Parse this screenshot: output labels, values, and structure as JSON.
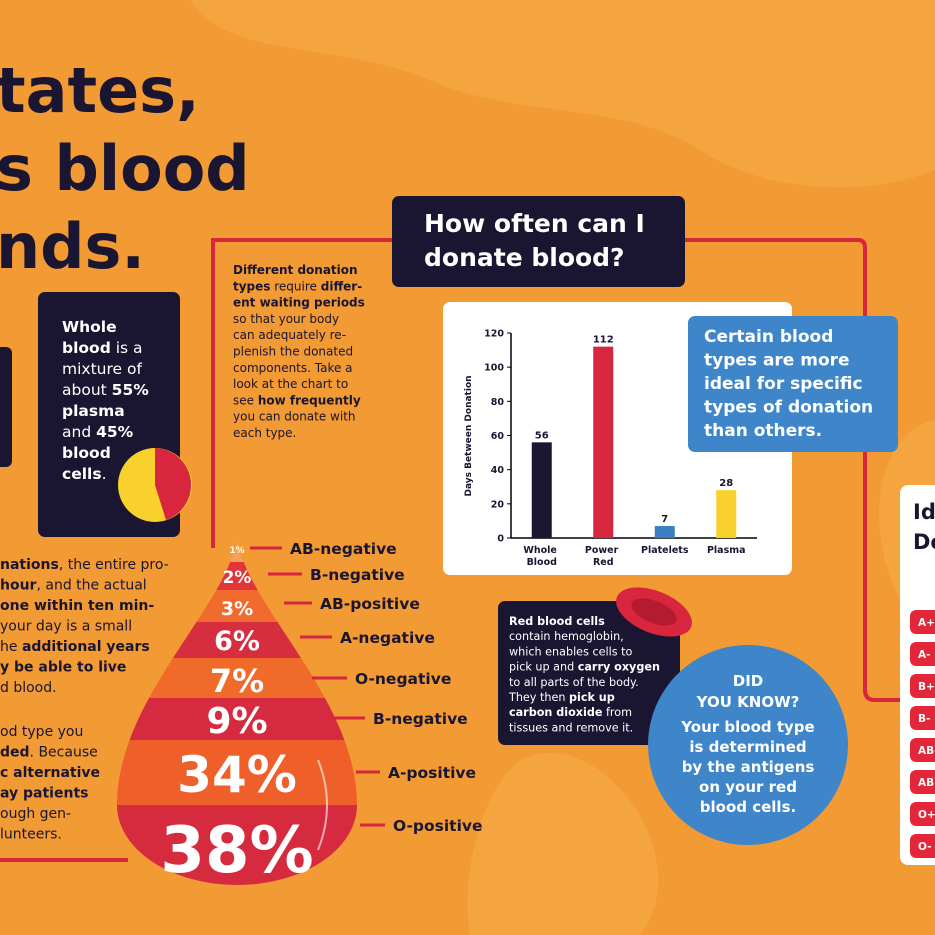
{
  "headline": [
    "tates,",
    "s blood",
    "nds."
  ],
  "left_text_1": [
    [
      {
        "text": "nations",
        "bold": true
      },
      {
        "text": ", the entire pro-"
      }
    ],
    [
      {
        "text": "hour",
        "bold": true
      },
      {
        "text": ", and the actual"
      }
    ],
    [
      {
        "text": "one within ten min-",
        "bold": true
      }
    ],
    [
      {
        "text": "your day is a small"
      }
    ],
    [
      {
        "text": "he "
      },
      {
        "text": "additional years",
        "bold": true
      }
    ],
    [
      {
        "text": "y be able to live",
        "bold": true
      }
    ],
    [
      {
        "text": "d blood."
      }
    ]
  ],
  "left_text_2": [
    [
      {
        "text": "od type you"
      }
    ],
    [
      {
        "text": "ded",
        "bold": true
      },
      {
        "text": ". Because"
      }
    ],
    [
      {
        "text": "c alternative",
        "bold": true
      }
    ],
    [
      {
        "text": "ay patients",
        "bold": true
      }
    ],
    [
      {
        "text": "ough gen-"
      }
    ],
    [
      {
        "text": "lunteers."
      }
    ]
  ],
  "whole_blood": [
    [
      {
        "text": "Whole",
        "bold": true
      }
    ],
    [
      {
        "text": "blood",
        "bold": true
      },
      {
        "text": " is a"
      }
    ],
    [
      {
        "text": "mixture of"
      }
    ],
    [
      {
        "text": "about "
      },
      {
        "text": "55%",
        "bold": true
      }
    ],
    [
      {
        "text": "plasma",
        "bold": true
      }
    ],
    [
      {
        "text": "and "
      },
      {
        "text": "45%",
        "bold": true
      }
    ],
    [
      {
        "text": "blood",
        "bold": true
      }
    ],
    [
      {
        "text": "cells",
        "bold": true
      },
      {
        "text": "."
      }
    ]
  ],
  "donation_text": [
    [
      {
        "text": "Different donation",
        "bold": true
      }
    ],
    [
      {
        "text": "types",
        "bold": true
      },
      {
        "text": " require "
      },
      {
        "text": "differ-",
        "bold": true
      }
    ],
    [
      {
        "text": "ent waiting periods",
        "bold": true
      }
    ],
    [
      {
        "text": "so that your body"
      }
    ],
    [
      {
        "text": "can adequately re-"
      }
    ],
    [
      {
        "text": "plenish the donated"
      }
    ],
    [
      {
        "text": "components. Take a"
      }
    ],
    [
      {
        "text": "look at the chart to"
      }
    ],
    [
      {
        "text": "see "
      },
      {
        "text": "how frequently",
        "bold": true
      }
    ],
    [
      {
        "text": "you can donate with"
      }
    ],
    [
      {
        "text": "each type."
      }
    ]
  ],
  "header": [
    "How often can I",
    "donate blood?"
  ],
  "chart_data": {
    "type": "bar",
    "categories": [
      "Whole Blood",
      "Power Red",
      "Platelets",
      "Plasma"
    ],
    "values": [
      56,
      112,
      7,
      28
    ],
    "colors": [
      "#1b1733",
      "#d7263d",
      "#3a7fc1",
      "#f9d12d"
    ],
    "ylabel": "Days Between Donation",
    "ylim": [
      0,
      120
    ],
    "yticks": [
      0,
      20,
      40,
      60,
      80,
      100,
      120
    ]
  },
  "blue_box": [
    "Certain blood",
    "types are more",
    "ideal for specific",
    "types of donation",
    "than others."
  ],
  "ideal_panel": {
    "title": [
      "Id",
      "De"
    ],
    "types": [
      "A+",
      "A-",
      "B+",
      "B-",
      "AB-",
      "AB",
      "O+",
      "O-"
    ]
  },
  "red_cells": [
    [
      {
        "text": "Red blood cells",
        "bold": true
      }
    ],
    [
      {
        "text": "contain hemoglobin,"
      }
    ],
    [
      {
        "text": "which enables cells to"
      }
    ],
    [
      {
        "text": "pick up and "
      },
      {
        "text": "carry oxygen",
        "bold": true
      }
    ],
    [
      {
        "text": "to all parts of the body."
      }
    ],
    [
      {
        "text": "They then "
      },
      {
        "text": "pick up",
        "bold": true
      }
    ],
    [
      {
        "text": "carbon dioxide",
        "bold": true
      },
      {
        "text": " from"
      }
    ],
    [
      {
        "text": "tissues and remove it."
      }
    ]
  ],
  "did_you_know": {
    "title": [
      "DID",
      "YOU KNOW?"
    ],
    "body": [
      "Your blood type",
      "is determined",
      "by the antigens",
      "on your red",
      "blood cells."
    ]
  },
  "drop": [
    {
      "percent": "1%",
      "type": "AB-negative"
    },
    {
      "percent": "2%",
      "type": "B-negative"
    },
    {
      "percent": "3%",
      "type": "AB-positive"
    },
    {
      "percent": "6%",
      "type": "A-negative"
    },
    {
      "percent": "7%",
      "type": "O-negative"
    },
    {
      "percent": "9%",
      "type": "B-negative"
    },
    {
      "percent": "34%",
      "type": "A-positive"
    },
    {
      "percent": "38%",
      "type": "O-positive"
    }
  ]
}
